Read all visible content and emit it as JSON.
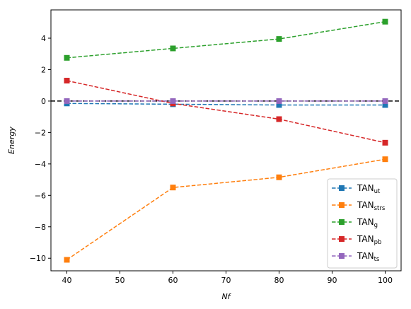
{
  "chart_data": {
    "type": "line",
    "xlabel": "Nf",
    "ylabel": "Energy",
    "xlim": [
      37,
      103
    ],
    "ylim": [
      -10.8,
      5.8
    ],
    "xticks": [
      40,
      50,
      60,
      70,
      80,
      90,
      100
    ],
    "yticks": [
      -10,
      -8,
      -6,
      -4,
      -2,
      0,
      2,
      4
    ],
    "grid": false,
    "legend_position": "lower-right",
    "hline": {
      "y": 0,
      "color": "#000000",
      "style": "dashed"
    },
    "x": [
      40,
      60,
      80,
      100
    ],
    "series": [
      {
        "name": "TAN",
        "sub": "ut",
        "color": "#1f77b4",
        "values": [
          -0.15,
          -0.2,
          -0.25,
          -0.25
        ]
      },
      {
        "name": "TAN",
        "sub": "strs",
        "color": "#ff7f0e",
        "values": [
          -10.1,
          -5.5,
          -4.85,
          -3.7
        ]
      },
      {
        "name": "TAN",
        "sub": "g",
        "color": "#2ca02c",
        "values": [
          2.75,
          3.35,
          3.95,
          5.05
        ]
      },
      {
        "name": "TAN",
        "sub": "pb",
        "color": "#d62728",
        "values": [
          1.3,
          -0.15,
          -1.15,
          -2.65
        ]
      },
      {
        "name": "TAN",
        "sub": "ts",
        "color": "#9467bd",
        "values": [
          0.0,
          0.0,
          0.0,
          0.0
        ]
      }
    ]
  }
}
